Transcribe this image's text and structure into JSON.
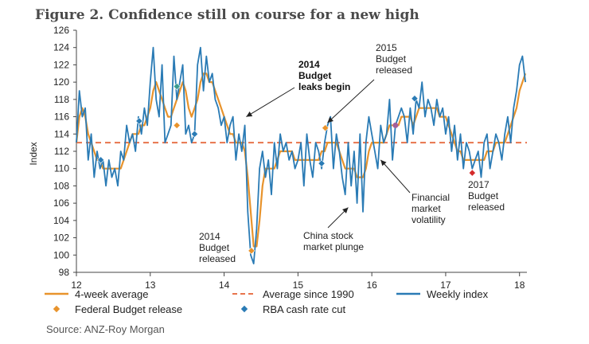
{
  "chart_data": {
    "type": "line",
    "title": "Figure 2. Confidence still on course for a new high",
    "ylabel": "Index",
    "xlabel": "",
    "xlim": [
      12,
      18.1
    ],
    "ylim": [
      98,
      126
    ],
    "x_ticks": [
      "12",
      "13",
      "14",
      "15",
      "16",
      "17",
      "18"
    ],
    "y_ticks": [
      "98",
      "100",
      "102",
      "104",
      "106",
      "108",
      "110",
      "112",
      "114",
      "116",
      "118",
      "120",
      "122",
      "124",
      "126"
    ],
    "grid": false,
    "legend_position": "bottom",
    "source": "Source: ANZ-Roy Morgan",
    "reference_line": {
      "name": "Average since 1990",
      "value": 113,
      "color": "#e8744c"
    },
    "series": [
      {
        "name": "Weekly index",
        "color": "#2a7bb5",
        "x": [
          12.0,
          12.04,
          12.08,
          12.12,
          12.16,
          12.2,
          12.24,
          12.28,
          12.32,
          12.36,
          12.4,
          12.44,
          12.48,
          12.52,
          12.56,
          12.6,
          12.64,
          12.68,
          12.72,
          12.76,
          12.8,
          12.84,
          12.88,
          12.92,
          12.96,
          13.0,
          13.04,
          13.08,
          13.12,
          13.16,
          13.2,
          13.24,
          13.28,
          13.32,
          13.36,
          13.4,
          13.44,
          13.48,
          13.52,
          13.56,
          13.6,
          13.64,
          13.68,
          13.72,
          13.76,
          13.8,
          13.84,
          13.88,
          13.92,
          13.96,
          14.0,
          14.04,
          14.08,
          14.12,
          14.16,
          14.2,
          14.24,
          14.28,
          14.32,
          14.36,
          14.4,
          14.44,
          14.48,
          14.52,
          14.56,
          14.6,
          14.64,
          14.68,
          14.72,
          14.76,
          14.8,
          14.84,
          14.88,
          14.92,
          14.96,
          15.0,
          15.04,
          15.08,
          15.12,
          15.16,
          15.2,
          15.24,
          15.28,
          15.32,
          15.36,
          15.4,
          15.44,
          15.48,
          15.52,
          15.56,
          15.6,
          15.64,
          15.68,
          15.72,
          15.76,
          15.8,
          15.84,
          15.88,
          15.92,
          15.96,
          16.0,
          16.04,
          16.08,
          16.12,
          16.16,
          16.2,
          16.24,
          16.28,
          16.32,
          16.36,
          16.4,
          16.44,
          16.48,
          16.52,
          16.56,
          16.6,
          16.64,
          16.68,
          16.72,
          16.76,
          16.8,
          16.84,
          16.88,
          16.92,
          16.96,
          17.0,
          17.04,
          17.08,
          17.12,
          17.16,
          17.2,
          17.24,
          17.28,
          17.32,
          17.36,
          17.4,
          17.44,
          17.48,
          17.52,
          17.56,
          17.6,
          17.64,
          17.68,
          17.72,
          17.76,
          17.8,
          17.84,
          17.88,
          17.92,
          17.96,
          18.0,
          18.04,
          18.08
        ],
        "values": [
          113,
          119,
          116,
          117,
          111,
          114,
          109,
          112,
          110,
          111,
          108,
          111,
          109,
          110,
          108,
          112,
          111,
          115,
          113,
          114,
          112,
          116,
          114,
          117,
          115,
          120,
          124,
          118,
          116,
          122,
          113,
          114,
          115,
          123,
          118,
          120,
          122,
          114,
          115,
          113,
          114,
          122,
          124,
          119,
          123,
          120,
          121,
          118,
          117,
          115,
          116,
          113,
          115,
          116,
          111,
          114,
          112,
          115,
          105,
          100,
          99,
          103,
          110,
          112,
          109,
          111,
          107,
          113,
          110,
          114,
          112,
          113,
          111,
          112,
          110,
          111,
          113,
          108,
          114,
          111,
          109,
          113,
          112,
          110,
          113,
          115,
          116,
          110,
          114,
          112,
          109,
          107,
          113,
          108,
          112,
          106,
          114,
          105,
          113,
          116,
          114,
          112,
          110,
          115,
          113,
          114,
          118,
          111,
          115,
          116,
          117,
          116,
          113,
          117,
          114,
          118,
          117,
          120,
          116,
          118,
          117,
          115,
          118,
          116,
          117,
          114,
          116,
          112,
          115,
          111,
          114,
          110,
          113,
          112,
          110,
          111,
          112,
          109,
          113,
          114,
          110,
          112,
          114,
          113,
          111,
          114,
          116,
          113,
          117,
          119,
          122,
          123,
          120
        ],
        "point_colors": {
          "16.32": "#a35f9b"
        }
      },
      {
        "name": "4-week average",
        "color": "#e8932c",
        "x": [
          12.0,
          12.04,
          12.08,
          12.12,
          12.16,
          12.2,
          12.24,
          12.28,
          12.32,
          12.36,
          12.4,
          12.44,
          12.48,
          12.52,
          12.56,
          12.6,
          12.64,
          12.68,
          12.72,
          12.76,
          12.8,
          12.84,
          12.88,
          12.92,
          12.96,
          13.0,
          13.04,
          13.08,
          13.12,
          13.16,
          13.2,
          13.24,
          13.28,
          13.32,
          13.36,
          13.4,
          13.44,
          13.48,
          13.52,
          13.56,
          13.6,
          13.64,
          13.68,
          13.72,
          13.76,
          13.8,
          13.84,
          13.88,
          13.92,
          13.96,
          14.0,
          14.04,
          14.08,
          14.12,
          14.16,
          14.2,
          14.24,
          14.28,
          14.32,
          14.36,
          14.4,
          14.44,
          14.48,
          14.52,
          14.56,
          14.6,
          14.64,
          14.68,
          14.72,
          14.76,
          14.8,
          14.84,
          14.88,
          14.92,
          14.96,
          15.0,
          15.04,
          15.08,
          15.12,
          15.16,
          15.2,
          15.24,
          15.28,
          15.32,
          15.36,
          15.4,
          15.44,
          15.48,
          15.52,
          15.56,
          15.6,
          15.64,
          15.68,
          15.72,
          15.76,
          15.8,
          15.84,
          15.88,
          15.92,
          15.96,
          16.0,
          16.04,
          16.08,
          16.12,
          16.16,
          16.2,
          16.24,
          16.28,
          16.32,
          16.36,
          16.4,
          16.44,
          16.48,
          16.52,
          16.56,
          16.6,
          16.64,
          16.68,
          16.72,
          16.76,
          16.8,
          16.84,
          16.88,
          16.92,
          16.96,
          17.0,
          17.04,
          17.08,
          17.12,
          17.16,
          17.2,
          17.24,
          17.28,
          17.32,
          17.36,
          17.4,
          17.44,
          17.48,
          17.52,
          17.56,
          17.6,
          17.64,
          17.68,
          17.72,
          17.76,
          17.8,
          17.84,
          17.88,
          17.92,
          17.96,
          18.0,
          18.04,
          18.08
        ],
        "values": [
          113,
          116,
          117,
          116,
          114,
          113,
          112,
          111,
          111,
          110,
          110,
          110,
          110,
          110,
          110,
          110,
          111,
          112,
          113,
          114,
          114,
          114,
          115,
          115,
          116,
          117,
          119,
          120,
          119,
          118,
          117,
          116,
          116,
          117,
          118,
          119,
          120,
          119,
          117,
          116,
          117,
          118,
          120,
          121,
          121,
          120,
          120,
          119,
          118,
          117,
          116,
          115,
          114,
          114,
          113,
          113,
          113,
          112,
          109,
          105,
          101,
          101,
          104,
          108,
          110,
          110,
          110,
          110,
          111,
          112,
          112,
          112,
          112,
          112,
          111,
          111,
          111,
          111,
          111,
          111,
          111,
          111,
          111,
          112,
          112,
          113,
          113,
          113,
          113,
          112,
          111,
          110,
          110,
          110,
          110,
          109,
          109,
          109,
          110,
          112,
          113,
          113,
          113,
          113,
          113,
          114,
          115,
          115,
          115,
          115,
          116,
          116,
          116,
          116,
          115,
          116,
          117,
          117,
          117,
          117,
          117,
          117,
          117,
          116,
          116,
          116,
          115,
          114,
          113,
          112,
          112,
          111,
          111,
          111,
          111,
          111,
          111,
          111,
          111,
          112,
          112,
          112,
          113,
          113,
          113,
          113,
          114,
          115,
          116,
          117,
          119,
          120,
          121
        ]
      }
    ],
    "markers": [
      {
        "series": "Federal Budget release",
        "x": 13.36,
        "y": 115,
        "color": "#e8932c"
      },
      {
        "series": "Federal Budget release",
        "x": 14.37,
        "y": 100.5,
        "color": "#e8932c"
      },
      {
        "series": "Federal Budget release",
        "x": 15.37,
        "y": 114.7,
        "color": "#e8932c"
      },
      {
        "series": "RBA cash rate cut",
        "x": 12.33,
        "y": 111,
        "color": "#2a7bb5"
      },
      {
        "series": "RBA cash rate cut",
        "x": 12.85,
        "y": 115.5,
        "color": "#2a7bb5"
      },
      {
        "series": "RBA cash rate cut",
        "x": 13.36,
        "y": 119.5,
        "color": "#3a9b8f"
      },
      {
        "series": "RBA cash rate cut",
        "x": 13.6,
        "y": 114,
        "color": "#2a7bb5"
      },
      {
        "series": "RBA cash rate cut",
        "x": 15.32,
        "y": 110.6,
        "color": "#2a7bb5"
      },
      {
        "series": "RBA cash rate cut",
        "x": 16.58,
        "y": 118.1,
        "color": "#2a7bb5"
      },
      {
        "series": "2017 Budget marker",
        "x": 17.36,
        "y": 109.5,
        "color": "#d42b2b"
      }
    ],
    "annotations": [
      {
        "id": "leaks",
        "lines": [
          "2014",
          "Budget",
          "leaks begin"
        ],
        "bold": true,
        "target_x": 14.3,
        "target_y": 116
      },
      {
        "id": "b2015",
        "lines": [
          "2015",
          "Budget",
          "released"
        ],
        "bold": false,
        "target_x": 15.4,
        "target_y": 115.3
      },
      {
        "id": "b2014",
        "lines": [
          "2014",
          "Budget",
          "released"
        ],
        "bold": false,
        "target_x": null,
        "target_y": null
      },
      {
        "id": "china",
        "lines": [
          "China stock",
          "market plunge"
        ],
        "bold": false,
        "target_x": 15.68,
        "target_y": 105.5
      },
      {
        "id": "finvol",
        "lines": [
          "Financial",
          "market",
          "volatility"
        ],
        "bold": false,
        "target_x": 16.12,
        "target_y": 111
      },
      {
        "id": "b2017",
        "lines": [
          "2017",
          "Budget",
          "released"
        ],
        "bold": false,
        "target_x": null,
        "target_y": null
      }
    ],
    "legend": [
      {
        "label": "4-week average",
        "kind": "line",
        "color": "#e8932c"
      },
      {
        "label": "Average since 1990",
        "kind": "dash",
        "color": "#e8744c"
      },
      {
        "label": "Weekly index",
        "kind": "line",
        "color": "#2a7bb5"
      },
      {
        "label": "Federal Budget release",
        "kind": "diamond",
        "color": "#e8932c"
      },
      {
        "label": "RBA cash rate cut",
        "kind": "diamond",
        "color": "#2a7bb5"
      }
    ]
  }
}
